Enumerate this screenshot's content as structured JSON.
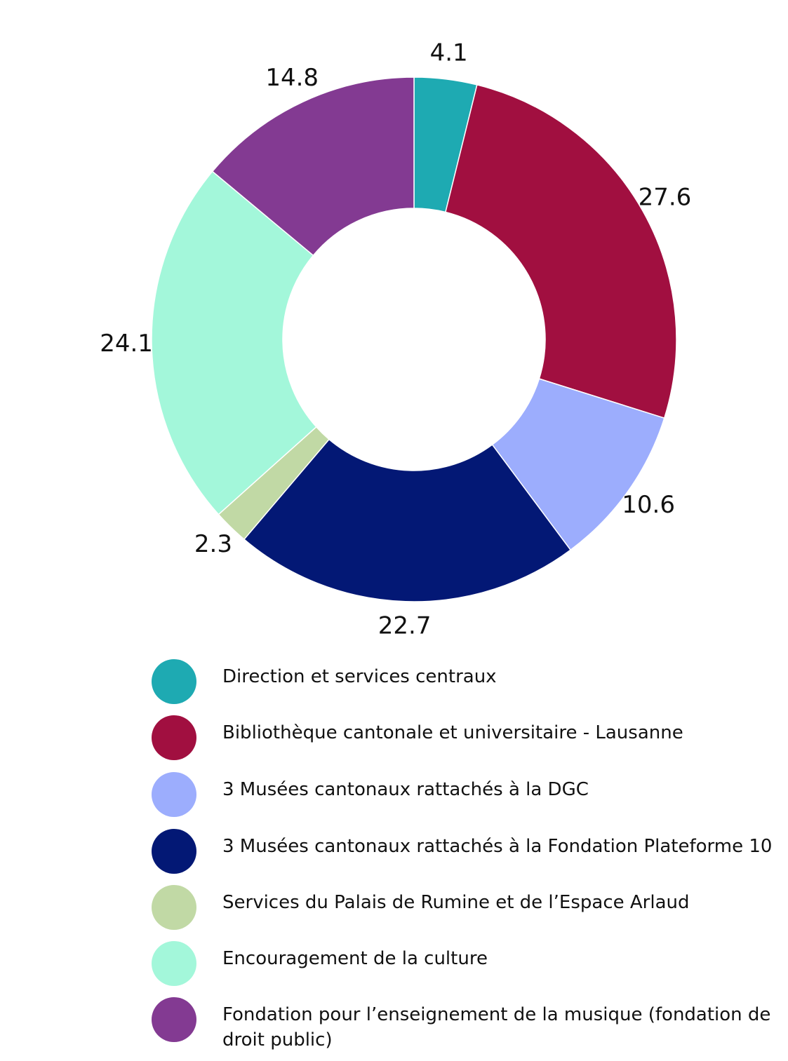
{
  "chart_data": {
    "type": "pie",
    "donut": true,
    "categories": [
      "Direction et services centraux",
      "Bibliothèque cantonale et universitaire - Lausanne",
      "3 Musées cantonaux rattachés à la DGC",
      "3 Musées cantonaux rattachés à la Fondation Plateforme 10",
      "Services du Palais de Rumine et de l’Espace Arlaud",
      "Encouragement de la culture",
      "Fondation pour l’enseignement de la musique (fondation de droit public)"
    ],
    "values": [
      4.1,
      27.6,
      10.6,
      22.7,
      2.3,
      24.1,
      14.8
    ],
    "value_labels": [
      "4.1",
      "27.6",
      "10.6",
      "22.7",
      "2.3",
      "24.1",
      "14.8"
    ],
    "colors": [
      "#1eaab2",
      "#a10f40",
      "#9cadfd",
      "#031875",
      "#c1d9a5",
      "#a3f7da",
      "#833a92"
    ],
    "start_angle": "12 o'clock",
    "direction": "clockwise",
    "legend_position": "bottom"
  }
}
